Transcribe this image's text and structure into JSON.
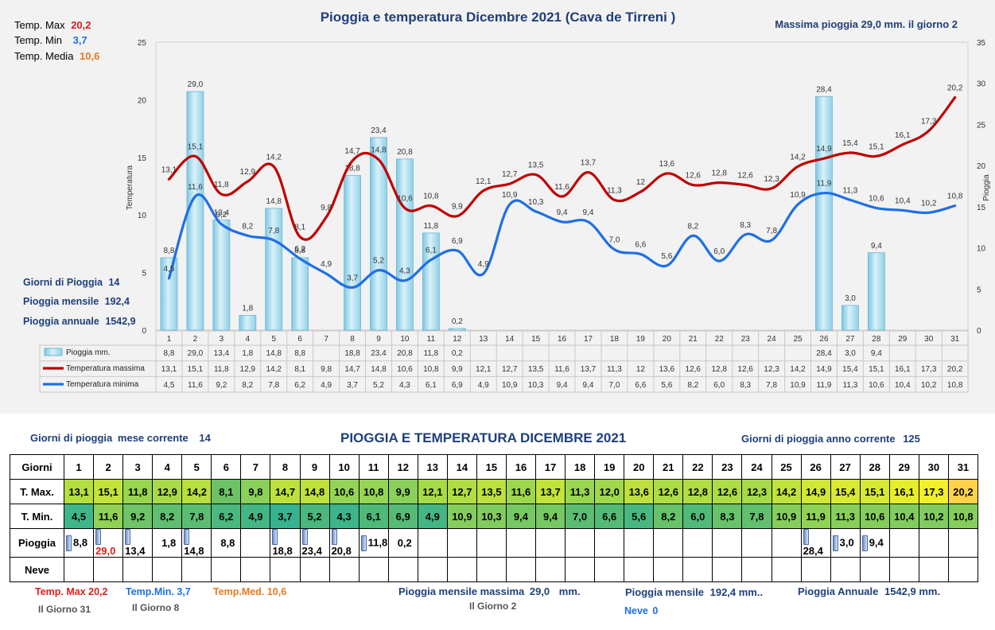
{
  "chart_data": {
    "type": "bar+line",
    "title": "Pioggia e temperatura Dicembre 2021 (Cava de Tirreni )",
    "top_right_note": "Massima pioggia  29,0 mm. il giorno  2",
    "ylabel_left": "Temperatura",
    "ylabel_right": "Pioggia",
    "ylim_left": [
      0,
      25
    ],
    "ylim_right": [
      0,
      35
    ],
    "left_ticks": [
      "0",
      "5",
      "10",
      "15",
      "20",
      "25"
    ],
    "right_ticks": [
      "0",
      "5",
      "10",
      "15",
      "20",
      "25",
      "30",
      "35"
    ],
    "categories": [
      "1",
      "2",
      "3",
      "4",
      "5",
      "6",
      "7",
      "8",
      "9",
      "10",
      "11",
      "12",
      "13",
      "14",
      "15",
      "16",
      "17",
      "18",
      "19",
      "20",
      "21",
      "22",
      "23",
      "24",
      "25",
      "26",
      "27",
      "28",
      "29",
      "30",
      "31"
    ],
    "series": [
      {
        "name": "Pioggia mm.",
        "axis": "right",
        "kind": "bar",
        "color": "#9fd8ea",
        "values": [
          8.8,
          29.0,
          13.4,
          1.8,
          14.8,
          8.8,
          null,
          18.8,
          23.4,
          20.8,
          11.8,
          0.2,
          null,
          null,
          null,
          null,
          null,
          null,
          null,
          null,
          null,
          null,
          null,
          null,
          null,
          28.4,
          3.0,
          9.4,
          null,
          null,
          null
        ],
        "labels": [
          "8,8",
          "29,0",
          "13,4",
          "1,8",
          "14,8",
          "8,8",
          "",
          "18,8",
          "23,4",
          "20,8",
          "11,8",
          "0,2",
          "",
          "",
          "",
          "",
          "",
          "",
          "",
          "",
          "",
          "",
          "",
          "",
          "",
          "28,4",
          "3,0",
          "9,4",
          "",
          "",
          ""
        ]
      },
      {
        "name": "Temperatura massima",
        "axis": "left",
        "kind": "line",
        "color": "#c00000",
        "values": [
          13.1,
          15.1,
          11.8,
          12.9,
          14.2,
          8.1,
          9.8,
          14.7,
          14.8,
          10.6,
          10.8,
          9.9,
          12.1,
          12.7,
          13.5,
          11.6,
          13.7,
          11.3,
          12.0,
          13.6,
          12.6,
          12.8,
          12.6,
          12.3,
          14.2,
          14.9,
          15.4,
          15.1,
          16.1,
          17.3,
          20.2
        ],
        "labels": [
          "13,1",
          "15,1",
          "11,8",
          "12,9",
          "14,2",
          "8,1",
          "9,8",
          "14,7",
          "14,8",
          "10,6",
          "10,8",
          "9,9",
          "12,1",
          "12,7",
          "13,5",
          "11,6",
          "13,7",
          "11,3",
          "12",
          "13,6",
          "12,6",
          "12,8",
          "12,6",
          "12,3",
          "14,2",
          "14,9",
          "15,4",
          "15,1",
          "16,1",
          "17,3",
          "20,2"
        ]
      },
      {
        "name": "Temperatura minima",
        "axis": "left",
        "kind": "line",
        "color": "#1f6fe5",
        "values": [
          4.5,
          11.6,
          9.2,
          8.2,
          7.8,
          6.2,
          4.9,
          3.7,
          5.2,
          4.3,
          6.1,
          6.9,
          4.9,
          10.9,
          10.3,
          9.4,
          9.4,
          7.0,
          6.6,
          5.6,
          8.2,
          6.0,
          8.3,
          7.8,
          10.9,
          11.9,
          11.3,
          10.6,
          10.4,
          10.2,
          10.8
        ],
        "labels": [
          "4,5",
          "11,6",
          "9,2",
          "8,2",
          "7,8",
          "6,2",
          "4,9",
          "3,7",
          "5,2",
          "4,3",
          "6,1",
          "6,9",
          "4,9",
          "10,9",
          "10,3",
          "9,4",
          "9,4",
          "7,0",
          "6,6",
          "5,6",
          "8,2",
          "6,0",
          "8,3",
          "7,8",
          "10,9",
          "11,9",
          "11,3",
          "10,6",
          "10,4",
          "10,2",
          "10,8"
        ]
      }
    ],
    "table_rows": {
      "rain": [
        "8,8",
        "29,0",
        "13,4",
        "1,8",
        "14,8",
        "8,8",
        "",
        "18,8",
        "23,4",
        "20,8",
        "11,8",
        "0,2",
        "",
        "",
        "",
        "",
        "",
        "",
        "",
        "",
        "",
        "",
        "",
        "",
        "",
        "28,4",
        "3,0",
        "9,4",
        "",
        "",
        ""
      ],
      "tmax": [
        "13,1",
        "15,1",
        "11,8",
        "12,9",
        "14,2",
        "8,1",
        "9,8",
        "14,7",
        "14,8",
        "10,6",
        "10,8",
        "9,9",
        "12,1",
        "12,7",
        "13,5",
        "11,6",
        "13,7",
        "11,3",
        "12",
        "13,6",
        "12,6",
        "12,8",
        "12,6",
        "12,3",
        "14,2",
        "14,9",
        "15,4",
        "15,1",
        "16,1",
        "17,3",
        "20,2"
      ],
      "tmin": [
        "4,5",
        "11,6",
        "9,2",
        "8,2",
        "7,8",
        "6,2",
        "4,9",
        "3,7",
        "5,2",
        "4,3",
        "6,1",
        "6,9",
        "4,9",
        "10,9",
        "10,3",
        "9,4",
        "9,4",
        "7,0",
        "6,6",
        "5,6",
        "8,2",
        "6,0",
        "8,3",
        "7,8",
        "10,9",
        "11,9",
        "11,3",
        "10,6",
        "10,4",
        "10,2",
        "10,8"
      ]
    },
    "legend_placement": "bottom data-table",
    "grid": false
  },
  "stats_top": {
    "tmax_label": "Temp. Max",
    "tmax_value": "20,2",
    "tmin_label": "Temp. Min",
    "tmin_value": "3,7",
    "tmed_label": "Temp. Media",
    "tmed_value": "10,6",
    "giorni_label": "Giorni di Pioggia",
    "giorni_value": "14",
    "mensile_label": "Pioggia mensile",
    "mensile_value": "192,4",
    "annuale_label": "Pioggia annuale",
    "annuale_value": "1542,9"
  },
  "bottom": {
    "title": "PIOGGIA E TEMPERATURA DICEMBRE 2021",
    "giorni_mese_label": "Giorni di pioggia",
    "giorni_mese_suffix": "mese corrente",
    "giorni_mese_value": "14",
    "giorni_anno_label": "Giorni di pioggia anno corrente",
    "giorni_anno_value": "125",
    "row_headers": [
      "Giorni",
      "T. Max.",
      "T. Min.",
      "Pioggia",
      "Neve"
    ],
    "tmax": [
      "13,1",
      "15,1",
      "11,8",
      "12,9",
      "14,2",
      "8,1",
      "9,8",
      "14,7",
      "14,8",
      "10,6",
      "10,8",
      "9,9",
      "12,1",
      "12,7",
      "13,5",
      "11,6",
      "13,7",
      "11,3",
      "12,0",
      "13,6",
      "12,6",
      "12,8",
      "12,6",
      "12,3",
      "14,2",
      "14,9",
      "15,4",
      "15,1",
      "16,1",
      "17,3",
      "20,2"
    ],
    "tmin": [
      "4,5",
      "11,6",
      "9,2",
      "8,2",
      "7,8",
      "6,2",
      "4,9",
      "3,7",
      "5,2",
      "4,3",
      "6,1",
      "6,9",
      "4,9",
      "10,9",
      "10,3",
      "9,4",
      "9,4",
      "7,0",
      "6,6",
      "5,6",
      "8,2",
      "6,0",
      "8,3",
      "7,8",
      "10,9",
      "11,9",
      "11,3",
      "10,6",
      "10,4",
      "10,2",
      "10,8"
    ],
    "rain": [
      "8,8",
      "29,0",
      "13,4",
      "1,8",
      "14,8",
      "8,8",
      "",
      "18,8",
      "23,4",
      "20,8",
      "11,8",
      "0,2",
      "",
      "",
      "",
      "",
      "",
      "",
      "",
      "",
      "",
      "",
      "",
      "",
      "",
      "28,4",
      "3,0",
      "9,4",
      "",
      "",
      ""
    ],
    "tmax_colors": [
      "#b5df40",
      "#c2e33a",
      "#99d650",
      "#a8da48",
      "#b7df40",
      "#6cc264",
      "#8ad05a",
      "#bde13c",
      "#bfe13c",
      "#93d456",
      "#95d454",
      "#8ad05a",
      "#a5da48",
      "#b0dd44",
      "#bce03e",
      "#9cd74e",
      "#c2e33a",
      "#98d650",
      "#a0d84c",
      "#bee03e",
      "#acdc46",
      "#b0dd44",
      "#acdc46",
      "#a6da48",
      "#c0e23c",
      "#d0e736",
      "#dae932",
      "#d4e834",
      "#e6ee2c",
      "#f2f028",
      "#ffd24a"
    ],
    "tmin_colors": [
      "#3fb58a",
      "#90d256",
      "#6ec466",
      "#5fbf70",
      "#5bbd72",
      "#4bb87e",
      "#44b684",
      "#36b28e",
      "#4ab77e",
      "#3db48a",
      "#4fb97a",
      "#55bb76",
      "#44b684",
      "#86ce5c",
      "#82cc5e",
      "#76c862",
      "#76c862",
      "#5bbd72",
      "#54bb76",
      "#49b780",
      "#68c26a",
      "#52ba78",
      "#68c26a",
      "#60c06e",
      "#86ce5c",
      "#90d256",
      "#88cf5a",
      "#84cd5c",
      "#82cc5e",
      "#80cc60",
      "#86ce5c"
    ],
    "bars": [
      true,
      true,
      true,
      false,
      true,
      false,
      false,
      true,
      true,
      true,
      true,
      false,
      false,
      false,
      false,
      false,
      false,
      false,
      false,
      false,
      false,
      false,
      false,
      false,
      false,
      true,
      true,
      true,
      false,
      false,
      false
    ],
    "foot_tmax_label": "Temp. Max",
    "foot_tmax_value": "20,2",
    "foot_tmax_day": "Il Giorno  31",
    "foot_tmin_label": "Temp.Min.",
    "foot_tmin_value": "3,7",
    "foot_tmin_day": "Il Giorno  8",
    "foot_tmed_label": "Temp.Med.",
    "foot_tmed_value": "10,6",
    "foot_max_rain_label": "Pioggia mensile massima",
    "foot_max_rain_value": "29,0",
    "foot_max_rain_unit": "mm.",
    "foot_max_rain_day": "Il Giorno  2",
    "foot_mensile_label": "Pioggia mensile",
    "foot_mensile_value": "192,4 mm..",
    "foot_neve_label": "Neve",
    "foot_neve_value": "0",
    "foot_annuale_label": "Pioggia Annuale",
    "foot_annuale_value": "1542,9 mm.",
    "color_red": "#e31b1b",
    "color_blue": "#1f6fe5",
    "color_orange": "#e87a1e",
    "color_navy": "#1f3f7a"
  }
}
